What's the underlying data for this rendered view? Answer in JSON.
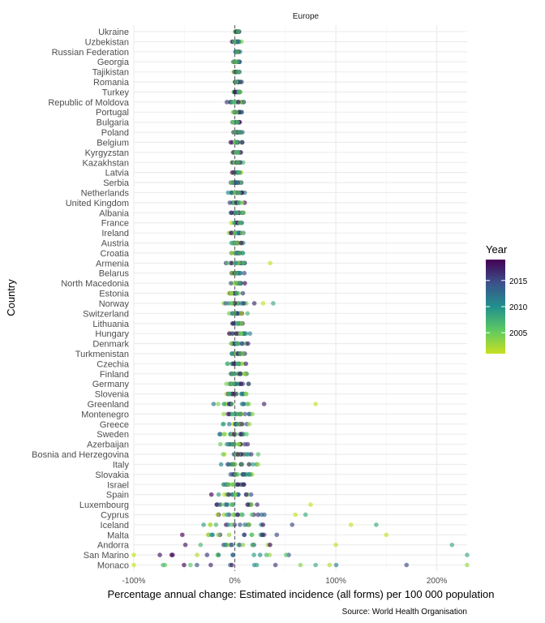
{
  "chart_data": {
    "type": "scatter",
    "facet_label": "Europe",
    "xlabel": "Percentage annual change: Estimated incidence (all forms) per 100 000 population",
    "ylabel": "Country",
    "caption": "Source: World Health Organisation",
    "xlim": [
      -100,
      230
    ],
    "xticks": [
      -100,
      0,
      100,
      200
    ],
    "xtick_labels": [
      "-100%",
      "0%",
      "100%",
      "200%"
    ],
    "reference_line_x": 0,
    "grid": true,
    "legend": {
      "title": "Year",
      "position": "right",
      "breaks": [
        2005,
        2010,
        2015
      ],
      "range": [
        2001,
        2019
      ],
      "colors": [
        "#440154",
        "#3b528b",
        "#21908d",
        "#5dc963",
        "#c8e020"
      ]
    },
    "countries": [
      "Ukraine",
      "Uzbekistan",
      "Russian Federation",
      "Georgia",
      "Tajikistan",
      "Romania",
      "Turkey",
      "Republic of Moldova",
      "Portugal",
      "Bulgaria",
      "Poland",
      "Belgium",
      "Kyrgyzstan",
      "Kazakhstan",
      "Latvia",
      "Serbia",
      "Netherlands",
      "United Kingdom",
      "Albania",
      "France",
      "Ireland",
      "Austria",
      "Croatia",
      "Armenia",
      "Belarus",
      "North Macedonia",
      "Estonia",
      "Norway",
      "Switzerland",
      "Lithuania",
      "Hungary",
      "Denmark",
      "Turkmenistan",
      "Czechia",
      "Finland",
      "Germany",
      "Slovenia",
      "Greenland",
      "Montenegro",
      "Greece",
      "Sweden",
      "Azerbaijan",
      "Bosnia and Herzegovina",
      "Italy",
      "Slovakia",
      "Israel",
      "Spain",
      "Luxembourg",
      "Cyprus",
      "Iceland",
      "Malta",
      "Andorra",
      "San Marino",
      "Monaco"
    ],
    "spread": [
      4,
      6,
      4,
      4,
      4,
      6,
      6,
      12,
      8,
      8,
      8,
      8,
      8,
      8,
      8,
      8,
      10,
      10,
      10,
      10,
      10,
      10,
      10,
      20,
      12,
      10,
      10,
      20,
      15,
      12,
      16,
      14,
      14,
      15,
      16,
      20,
      15,
      35,
      20,
      20,
      25,
      25,
      25,
      30,
      25,
      30,
      35,
      40,
      40,
      60,
      70,
      80,
      120,
      140
    ],
    "extremes": {
      "Greenland": [
        80
      ],
      "Armenia": [
        35
      ],
      "Norway": [
        28,
        38
      ],
      "Luxembourg": [
        75
      ],
      "Cyprus": [
        60,
        70
      ],
      "Iceland": [
        115,
        140
      ],
      "Malta": [
        150
      ],
      "Andorra": [
        100,
        215
      ],
      "San Marino": [
        -100,
        230
      ],
      "Monaco": [
        -100,
        80,
        170,
        230
      ]
    }
  }
}
